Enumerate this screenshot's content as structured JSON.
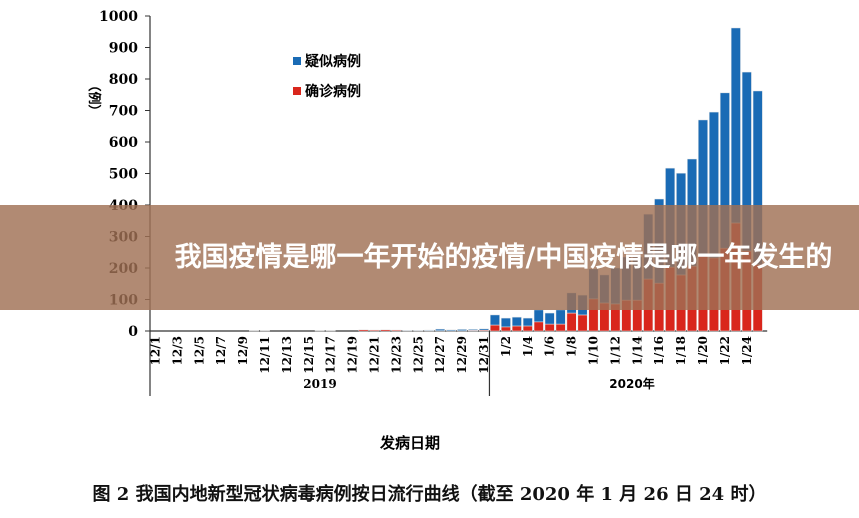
{
  "banner": {
    "title": "我国疫情是哪一年开始的疫情/中国疫情是哪一年发生的"
  },
  "chart_data": {
    "type": "bar",
    "stacked": true,
    "ylabel": "（例）",
    "xlabel": "发病日期",
    "ylim": [
      0,
      1000
    ],
    "yticks": [
      0,
      100,
      200,
      300,
      400,
      500,
      600,
      700,
      800,
      900,
      1000
    ],
    "caption": "图 2  我国内地新型冠状病毒病例按日流行曲线（截至 2020 年 1 月 26 日 24 时）",
    "year_labels": [
      "2019",
      "2020年"
    ],
    "legend_position": "top-center",
    "categories": [
      "12/1",
      "12/2",
      "12/3",
      "12/4",
      "12/5",
      "12/6",
      "12/7",
      "12/8",
      "12/9",
      "12/10",
      "12/11",
      "12/12",
      "12/13",
      "12/14",
      "12/15",
      "12/16",
      "12/17",
      "12/18",
      "12/19",
      "12/20",
      "12/21",
      "12/22",
      "12/23",
      "12/24",
      "12/25",
      "12/26",
      "12/27",
      "12/28",
      "12/29",
      "12/30",
      "12/31",
      "1/1",
      "1/2",
      "1/3",
      "1/4",
      "1/5",
      "1/6",
      "1/7",
      "1/8",
      "1/9",
      "1/10",
      "1/11",
      "1/12",
      "1/13",
      "1/14",
      "1/15",
      "1/16",
      "1/17",
      "1/18",
      "1/19",
      "1/20",
      "1/21",
      "1/22",
      "1/23",
      "1/24",
      "1/25"
    ],
    "tick_labels": [
      "12/1",
      "12/3",
      "12/5",
      "12/7",
      "12/9",
      "12/11",
      "12/13",
      "12/15",
      "12/17",
      "12/19",
      "12/21",
      "12/23",
      "12/25",
      "12/27",
      "12/29",
      "12/31",
      "1/2",
      "1/4",
      "1/6",
      "1/8",
      "1/10",
      "1/12",
      "1/14",
      "1/16",
      "1/18",
      "1/20",
      "1/22",
      "1/24"
    ],
    "series": [
      {
        "name": "确诊病例",
        "color": "#d9261c",
        "values": [
          0,
          0,
          0,
          0,
          0,
          0,
          0,
          0,
          0,
          1,
          1,
          0,
          0,
          0,
          0,
          1,
          1,
          0,
          0,
          4,
          3,
          4,
          3,
          1,
          1,
          1,
          1,
          1,
          1,
          2,
          3,
          19,
          13,
          16,
          16,
          29,
          22,
          22,
          57,
          51,
          102,
          89,
          86,
          98,
          98,
          165,
          152,
          203,
          178,
          206,
          241,
          232,
          263,
          343,
          254,
          210
        ]
      },
      {
        "name": "疑似病例",
        "color": "#1a6bb5",
        "values": [
          0,
          0,
          0,
          0,
          0,
          0,
          0,
          0,
          0,
          0,
          0,
          0,
          0,
          0,
          0,
          0,
          0,
          0,
          0,
          0,
          0,
          0,
          0,
          1,
          1,
          2,
          5,
          3,
          4,
          3,
          4,
          32,
          28,
          28,
          25,
          38,
          35,
          45,
          64,
          63,
          95,
          89,
          114,
          137,
          137,
          206,
          267,
          314,
          323,
          340,
          429,
          463,
          493,
          619,
          568,
          552
        ]
      }
    ]
  }
}
